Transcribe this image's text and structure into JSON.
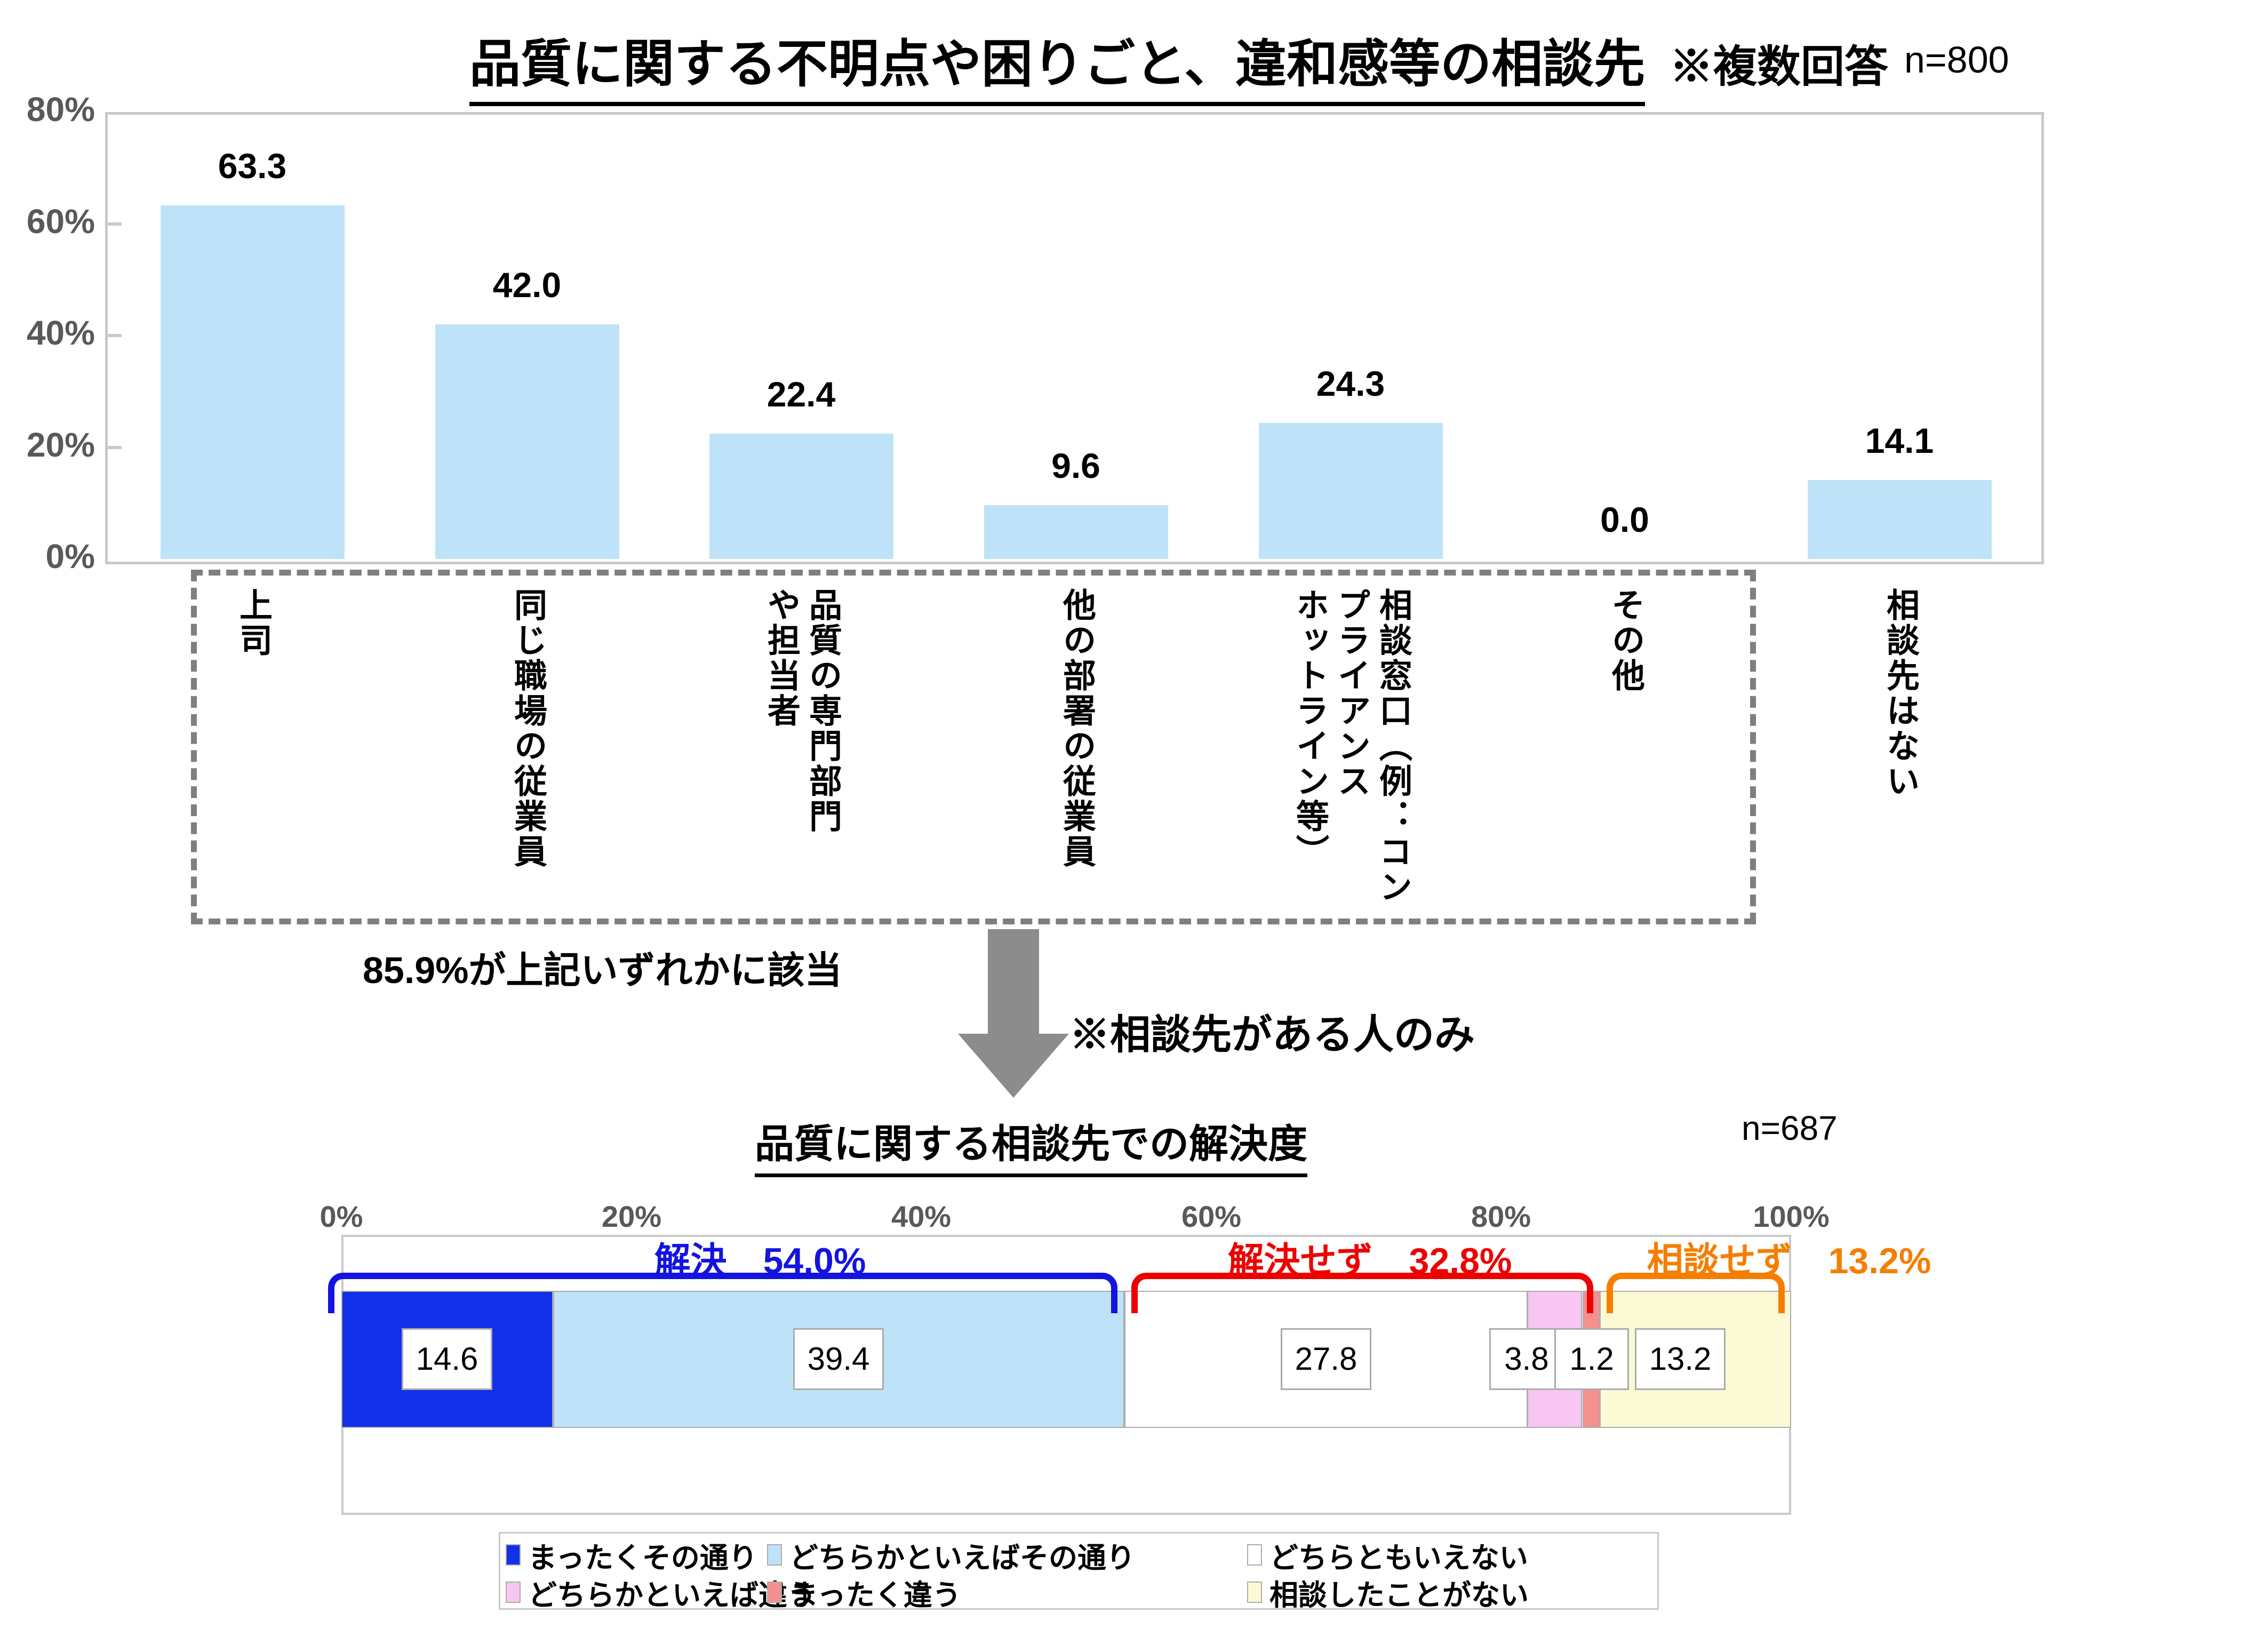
{
  "colors": {
    "light_blue": "#BEE3F8",
    "dark_blue": "#1130E8",
    "white": "#FFFFFF",
    "pink": "#F8C6F2",
    "salmon": "#F4908D",
    "pale_yellow": "#FCFAD5",
    "bracket_blue": "#1414E0",
    "bracket_red": "#EE0000",
    "bracket_orange": "#F57E00",
    "axis_gray": "#595959",
    "box_border": "#C9C9C9",
    "segment_border": "#ABABAB",
    "dashed_box": "#7F7F7F",
    "arrow_gray": "#8C8C8C"
  },
  "chart_data": [
    {
      "type": "bar",
      "title": "品質に関する不明点や困りごと、違和感等の相談先",
      "note": "※複数回答",
      "n_label": "n=800",
      "categories": [
        "上司",
        "同じ職場の従業員",
        "品質の専門部門\nや担当者",
        "他の部署の従業員",
        "相談窓口（例：コン\nプライアンス\nホットライン等）",
        "その他",
        "相談先はない"
      ],
      "values": [
        63.3,
        42.0,
        22.4,
        9.6,
        24.3,
        0.0,
        14.1
      ],
      "display_values": [
        "63.3",
        "42.0",
        "22.4",
        "9.6",
        "24.3",
        "0.0",
        "14.1"
      ],
      "ylim": [
        0,
        80
      ],
      "y_ticks": [
        "0%",
        "20%",
        "40%",
        "60%",
        "80%"
      ],
      "grid": "off",
      "annotation": "85.9%が上記いずれかに該当",
      "arrow_note": "※相談先がある人のみ"
    },
    {
      "type": "stacked-bar-horizontal",
      "title": "品質に関する相談先での解決度",
      "n_label": "n=687",
      "x_ticks": [
        "0%",
        "20%",
        "40%",
        "60%",
        "80%",
        "100%"
      ],
      "xlim": [
        0,
        100
      ],
      "segments": [
        {
          "label": "まったくその通り",
          "value": 14.6,
          "display": "14.6",
          "color_key": "dark_blue"
        },
        {
          "label": "どちらかといえばその通り",
          "value": 39.4,
          "display": "39.4",
          "color_key": "light_blue"
        },
        {
          "label": "どちらともいえない",
          "value": 27.8,
          "display": "27.8",
          "color_key": "white"
        },
        {
          "label": "どちらかといえば違う",
          "value": 3.8,
          "display": "3.8",
          "color_key": "pink"
        },
        {
          "label": "まったく違う",
          "value": 1.2,
          "display": "1.2",
          "color_key": "salmon"
        },
        {
          "label": "相談したことがない",
          "value": 13.2,
          "display": "13.2",
          "color_key": "pale_yellow"
        }
      ],
      "brackets": [
        {
          "label": "解決",
          "value_label": "54.0%",
          "from": 0,
          "to": 54.0,
          "color_key": "bracket_blue"
        },
        {
          "label": "解決せず",
          "value_label": "32.8%",
          "from": 54.0,
          "to": 86.8,
          "color_key": "bracket_red"
        },
        {
          "label": "相談せず",
          "value_label": "13.2%",
          "from": 86.8,
          "to": 100.0,
          "color_key": "bracket_orange"
        }
      ],
      "legend_rows": [
        [
          0,
          1,
          2
        ],
        [
          3,
          4,
          5
        ]
      ]
    }
  ]
}
